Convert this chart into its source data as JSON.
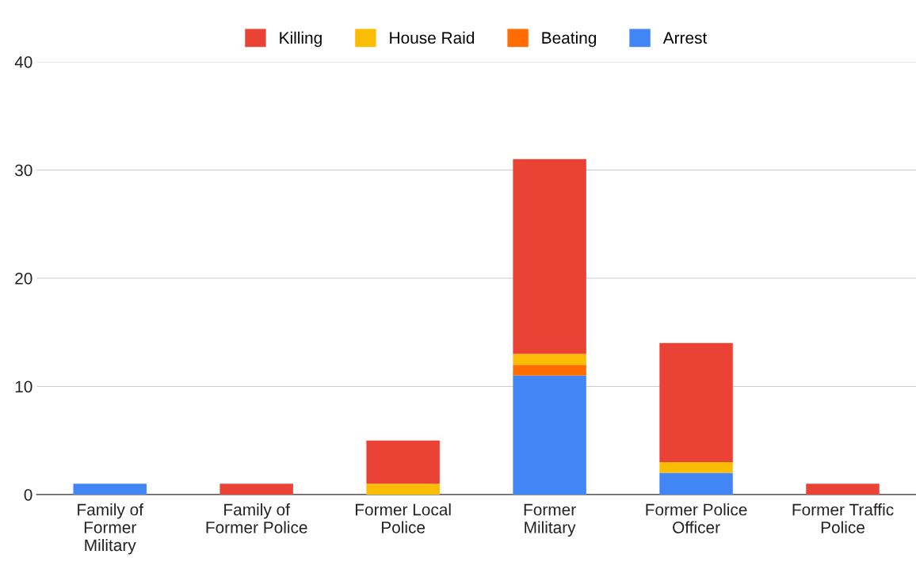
{
  "chart_data": {
    "type": "bar",
    "stacked": true,
    "categories": [
      "Family of Former Military",
      "Family of Former Police",
      "Former Local Police",
      "Former Military",
      "Former Police Officer",
      "Former Traffic Police"
    ],
    "series": [
      {
        "name": "Arrest",
        "color": "#4285f4",
        "values": [
          1,
          0,
          0,
          11,
          2,
          0
        ]
      },
      {
        "name": "Beating",
        "color": "#ff6d01",
        "values": [
          0,
          0,
          0,
          1,
          0,
          0
        ]
      },
      {
        "name": "House Raid",
        "color": "#fbbc04",
        "values": [
          0,
          0,
          1,
          1,
          1,
          0
        ]
      },
      {
        "name": "Killing",
        "color": "#ea4335",
        "values": [
          0,
          1,
          4,
          18,
          11,
          1
        ]
      }
    ],
    "ylim": [
      0,
      40
    ],
    "yticks": [
      0,
      10,
      20,
      30,
      40
    ],
    "grid": "y",
    "legend": "top"
  }
}
